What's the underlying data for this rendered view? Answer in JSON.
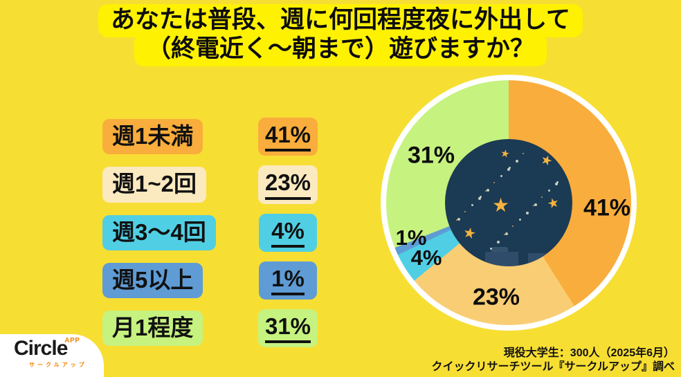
{
  "title": {
    "line1": "あなたは普段、週に何回程度夜に外出して",
    "line2": "（終電近く〜朝まで）遊びますか？"
  },
  "legend": {
    "items": [
      {
        "label": "週1未満",
        "value": "41%",
        "color": "#F9AD3C"
      },
      {
        "label": "週1~2回",
        "value": "23%",
        "color": "#FBE9C0"
      },
      {
        "label": "週3〜4回",
        "value": "4%",
        "color": "#50CFE4"
      },
      {
        "label": "週5以上",
        "value": "1%",
        "color": "#5F9CD5"
      },
      {
        "label": "月1程度",
        "value": "31%",
        "color": "#C6F27F"
      }
    ]
  },
  "chart_data": {
    "type": "pie",
    "title": "あなたは普段、週に何回程度夜に外出して（終電近く〜朝まで）遊びますか？",
    "categories": [
      "週1未満",
      "週1~2回",
      "週3〜4回",
      "週5以上",
      "月1程度"
    ],
    "values": [
      41,
      23,
      4,
      1,
      31
    ],
    "unit": "%",
    "labels": {
      "p41": "41%",
      "p23": "23%",
      "p4": "4%",
      "p1": "1%",
      "p31": "31%"
    },
    "colors": [
      "#F9AD3C",
      "#F9CD74",
      "#50CFE4",
      "#5F9CD5",
      "#C6F27F"
    ],
    "start_angle_deg": 0,
    "direction": "clockwise",
    "ring_color": "#FFFFFF",
    "legend_position": "left",
    "center_illustration": "night-sky-with-stars-and-city-silhouette",
    "center_colors": {
      "sky": "#1B3A54",
      "stars": "#F5B33E",
      "buildings": "#2F4D6A"
    }
  },
  "source": {
    "line1": "現役大学生：300人（2025年6月）",
    "line2": "クイックリサーチツール『サークルアップ』調べ"
  },
  "logo": {
    "name": "Circle",
    "superscript": "APP",
    "subtitle": "サークルアップ"
  },
  "colors": {
    "background": "#F7DE33",
    "title_highlight": "#FFF102",
    "text": "#111111",
    "logo_accent": "#F08300"
  }
}
